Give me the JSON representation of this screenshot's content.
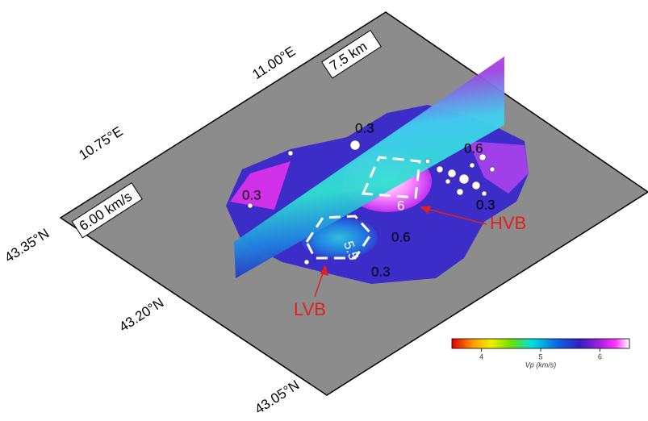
{
  "axes": {
    "lon_labels": [
      "11.00°E",
      "10.75°E"
    ],
    "lat_labels": [
      "43.35°N",
      "43.20°N",
      "43.05°N"
    ],
    "scale_label": "7.5 km",
    "velocity_label": "6.00 km/s"
  },
  "contour_labels": [
    "0.3",
    "0.3",
    "0.6",
    "0.3",
    "0.6",
    "0.3",
    "6",
    "5.5"
  ],
  "annotations": [
    "HVB",
    "LVB"
  ],
  "colorbar": {
    "label": "Vp (km/s)",
    "range": [
      3.5,
      6.5
    ],
    "ticks": [
      4,
      5,
      6
    ]
  }
}
